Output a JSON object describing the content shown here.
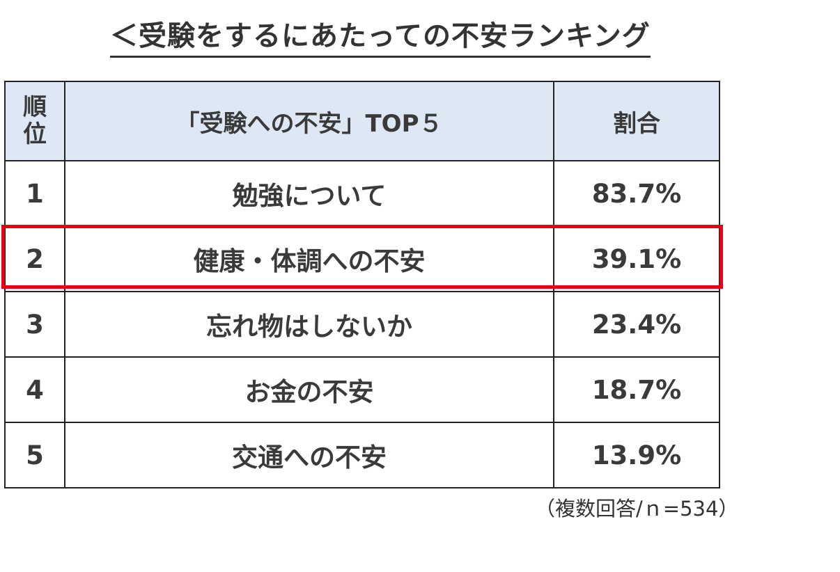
{
  "title": "＜受験をするにあたっての不安ランキング",
  "chart_data": {
    "type": "table",
    "title": "＜受験をするにあたっての不安ランキング",
    "columns": {
      "rank_line1": "順",
      "rank_line2": "位",
      "item": "「受験への不安」TOP５",
      "ratio": "割合"
    },
    "rows": [
      {
        "rank": "1",
        "item": "勉強について",
        "ratio": "83.7%",
        "value": 83.7
      },
      {
        "rank": "2",
        "item": "健康・体調への不安",
        "ratio": "39.1%",
        "value": 39.1
      },
      {
        "rank": "3",
        "item": "忘れ物はしないか",
        "ratio": "23.4%",
        "value": 23.4
      },
      {
        "rank": "4",
        "item": "お金の不安",
        "ratio": "18.7%",
        "value": 18.7
      },
      {
        "rank": "5",
        "item": "交通への不安",
        "ratio": "13.9%",
        "value": 13.9
      }
    ],
    "highlighted_rank": "2",
    "highlight_color": "#e60012",
    "header_bg": "#dde8f4",
    "note": "（複数回答/ｎ=534）"
  }
}
